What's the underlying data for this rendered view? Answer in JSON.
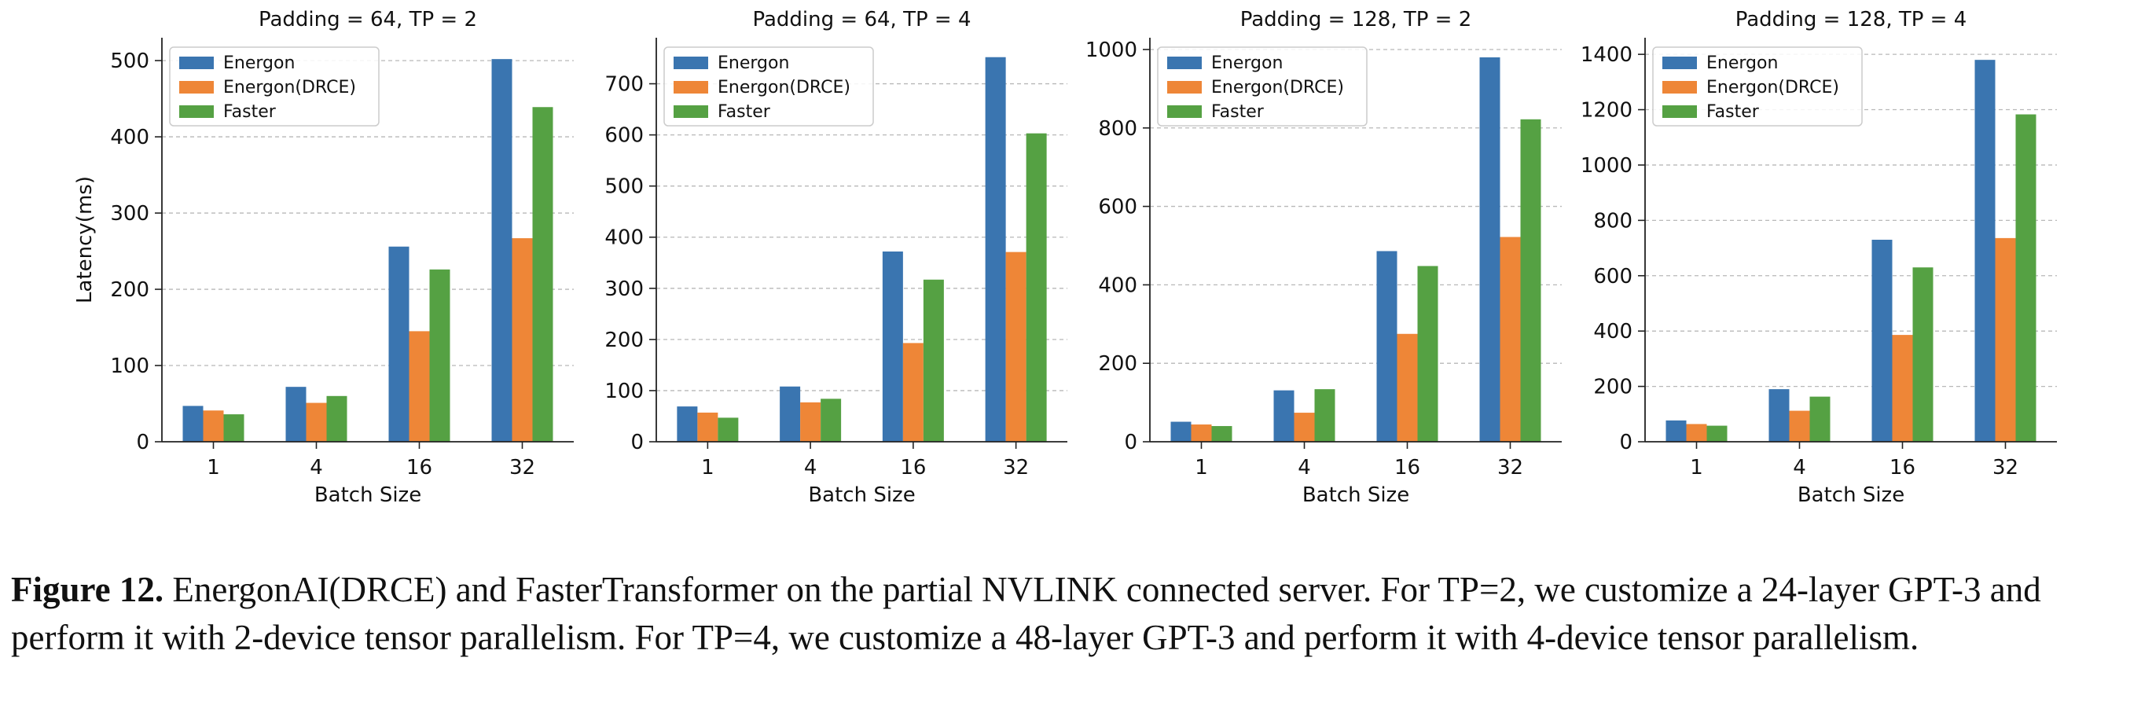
{
  "chart_data": [
    {
      "type": "bar",
      "title": "Padding = 64, TP = 2",
      "xlabel": "Batch Size",
      "ylabel": "Latency(ms)",
      "categories": [
        "1",
        "4",
        "16",
        "32"
      ],
      "ylim": [
        0,
        530
      ],
      "yticks": [
        0,
        100,
        200,
        300,
        400,
        500
      ],
      "grid": true,
      "legend": "top-left",
      "series": [
        {
          "name": "Energon",
          "color": "#3a75b0",
          "values": [
            47,
            72,
            256,
            502
          ]
        },
        {
          "name": "Energon(DRCE)",
          "color": "#ee8637",
          "values": [
            41,
            51,
            145,
            267
          ]
        },
        {
          "name": "Faster",
          "color": "#55a143",
          "values": [
            36,
            60,
            226,
            439
          ]
        }
      ]
    },
    {
      "type": "bar",
      "title": "Padding = 64, TP = 4",
      "xlabel": "Batch Size",
      "ylabel": "",
      "categories": [
        "1",
        "4",
        "16",
        "32"
      ],
      "ylim": [
        0,
        790
      ],
      "yticks": [
        0,
        100,
        200,
        300,
        400,
        500,
        600,
        700
      ],
      "grid": true,
      "legend": "top-left",
      "series": [
        {
          "name": "Energon",
          "color": "#3a75b0",
          "values": [
            69,
            108,
            372,
            752
          ]
        },
        {
          "name": "Energon(DRCE)",
          "color": "#ee8637",
          "values": [
            57,
            77,
            193,
            371
          ]
        },
        {
          "name": "Faster",
          "color": "#55a143",
          "values": [
            47,
            84,
            317,
            603
          ]
        }
      ]
    },
    {
      "type": "bar",
      "title": "Padding = 128, TP = 2",
      "xlabel": "Batch Size",
      "ylabel": "",
      "categories": [
        "1",
        "4",
        "16",
        "32"
      ],
      "ylim": [
        0,
        1030
      ],
      "yticks": [
        0,
        200,
        400,
        600,
        800,
        1000
      ],
      "grid": true,
      "legend": "top-left",
      "series": [
        {
          "name": "Energon",
          "color": "#3a75b0",
          "values": [
            51,
            131,
            486,
            980
          ]
        },
        {
          "name": "Energon(DRCE)",
          "color": "#ee8637",
          "values": [
            44,
            74,
            275,
            522
          ]
        },
        {
          "name": "Faster",
          "color": "#55a143",
          "values": [
            40,
            134,
            448,
            822
          ]
        }
      ]
    },
    {
      "type": "bar",
      "title": "Padding = 128, TP = 4",
      "xlabel": "Batch Size",
      "ylabel": "",
      "categories": [
        "1",
        "4",
        "16",
        "32"
      ],
      "ylim": [
        0,
        1460
      ],
      "yticks": [
        0,
        200,
        400,
        600,
        800,
        1000,
        1200,
        1400
      ],
      "grid": true,
      "legend": "top-left",
      "series": [
        {
          "name": "Energon",
          "color": "#3a75b0",
          "values": [
            77,
            190,
            730,
            1380
          ]
        },
        {
          "name": "Energon(DRCE)",
          "color": "#ee8637",
          "values": [
            64,
            112,
            386,
            736
          ]
        },
        {
          "name": "Faster",
          "color": "#55a143",
          "values": [
            58,
            163,
            630,
            1183
          ]
        }
      ]
    }
  ],
  "caption": {
    "label": "Figure 12.",
    "text": " EnergonAI(DRCE) and FasterTransformer on the partial NVLINK connected server. For TP=2, we customize a 24-layer GPT-3 and perform it with 2-device tensor parallelism. For TP=4, we customize a 48-layer GPT-3 and perform it with 4-device tensor parallelism."
  }
}
